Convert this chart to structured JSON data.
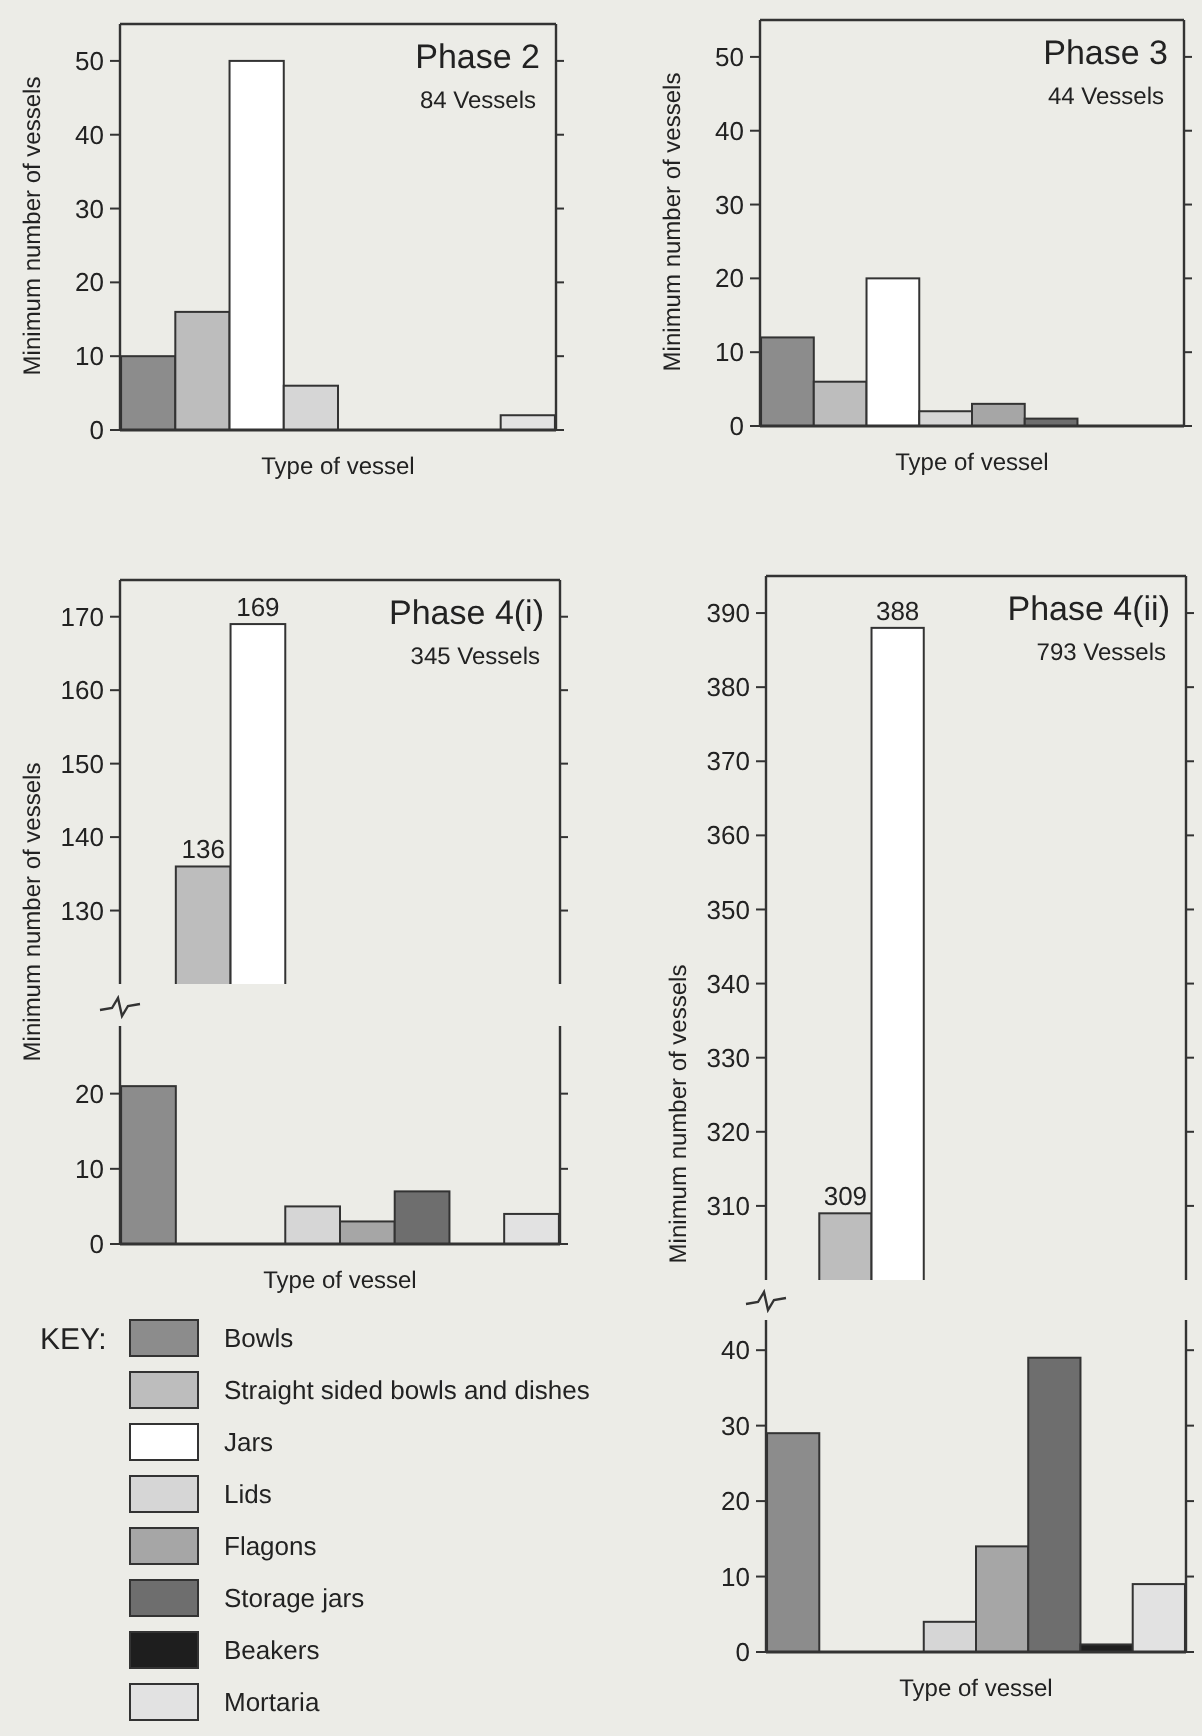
{
  "chart_data": [
    {
      "type": "bar",
      "title": "Phase 2",
      "subtitle": "84 Vessels",
      "xlabel": "Type of vessel",
      "ylabel": "Minimum number of vessels",
      "categories": [
        null,
        null,
        null,
        null,
        null,
        null,
        null,
        null
      ],
      "stacked": true,
      "ylim": [
        0,
        55
      ],
      "yticks": [
        0,
        10,
        20,
        30,
        40,
        50
      ],
      "series": [
        {
          "color": "#8c8c8c",
          "values": [
            10,
            null,
            null,
            null,
            null,
            null,
            null,
            null
          ]
        },
        {
          "color": "#bdbdbd",
          "values": [
            null,
            16,
            null,
            null,
            null,
            null,
            null,
            null
          ]
        },
        {
          "color": "#ffffff",
          "values": [
            null,
            null,
            50,
            null,
            null,
            null,
            null,
            null
          ]
        },
        {
          "color": "#d6d6d6",
          "values": [
            null,
            null,
            null,
            6,
            null,
            null,
            null,
            null
          ]
        },
        {
          "color": "#e2e2e2",
          "values": [
            null,
            null,
            null,
            null,
            null,
            null,
            null,
            2
          ]
        }
      ]
    },
    {
      "type": "bar",
      "title": "Phase 3",
      "subtitle": "44 Vessels",
      "xlabel": "Type of vessel",
      "ylabel": "Minimum number of vessels",
      "categories": [
        null,
        null,
        null,
        null,
        null,
        null,
        null,
        null
      ],
      "stacked": true,
      "ylim": [
        0,
        55
      ],
      "yticks": [
        0,
        10,
        20,
        30,
        40,
        50
      ],
      "series": [
        {
          "color": "#8c8c8c",
          "values": [
            12,
            null,
            null,
            null,
            null,
            null,
            null,
            null
          ]
        },
        {
          "color": "#bdbdbd",
          "values": [
            null,
            6,
            null,
            null,
            null,
            null,
            null,
            null
          ]
        },
        {
          "color": "#ffffff",
          "values": [
            null,
            null,
            20,
            null,
            null,
            null,
            null,
            null
          ]
        },
        {
          "color": "#d6d6d6",
          "values": [
            null,
            null,
            null,
            2,
            null,
            null,
            null,
            null
          ]
        },
        {
          "color": "#a6a6a6",
          "values": [
            null,
            null,
            null,
            null,
            3,
            null,
            null,
            null
          ]
        },
        {
          "color": "#6e6e6e",
          "values": [
            null,
            null,
            null,
            null,
            null,
            1,
            null,
            null
          ]
        }
      ]
    },
    {
      "type": "bar",
      "title": "Phase 4(i)",
      "subtitle": "345 Vessels",
      "categories": [
        null,
        null,
        null,
        null,
        null,
        null,
        null,
        null
      ],
      "stacked": true,
      "ylim": [
        120,
        175
      ],
      "yticks": [
        130,
        140,
        150,
        160,
        170
      ],
      "series": [
        {
          "color": "#bdbdbd",
          "values": [
            null,
            136,
            null,
            null,
            null,
            null,
            null,
            null
          ],
          "value_labels": [
            null,
            "136",
            null,
            null,
            null,
            null,
            null,
            null
          ]
        },
        {
          "color": "#ffffff",
          "values": [
            null,
            null,
            169,
            null,
            null,
            null,
            null,
            null
          ],
          "value_labels": [
            null,
            null,
            "169",
            null,
            null,
            null,
            null,
            null
          ]
        }
      ]
    },
    {
      "type": "bar",
      "xlabel": "Type of vessel",
      "ylabel": "Minimum number of vessels",
      "categories": [
        null,
        null,
        null,
        null,
        null,
        null,
        null,
        null
      ],
      "stacked": true,
      "ylim": [
        0,
        29
      ],
      "yticks": [
        0,
        10,
        20
      ],
      "legend": "bottom",
      "legend_title": "KEY:",
      "series": [
        {
          "name": "Bowls",
          "color": "#8c8c8c",
          "values": [
            21,
            null,
            null,
            null,
            null,
            null,
            null,
            null
          ]
        },
        {
          "name": "Straight sided bowls and dishes",
          "color": "#bdbdbd",
          "values": [
            null,
            null,
            null,
            null,
            null,
            null,
            null,
            null
          ]
        },
        {
          "name": "Jars",
          "color": "#ffffff",
          "values": [
            null,
            null,
            null,
            null,
            null,
            null,
            null,
            null
          ]
        },
        {
          "name": "Lids",
          "color": "#d6d6d6",
          "values": [
            null,
            null,
            null,
            5,
            null,
            null,
            null,
            null
          ]
        },
        {
          "name": "Flagons",
          "color": "#a6a6a6",
          "values": [
            null,
            null,
            null,
            null,
            3,
            null,
            null,
            null
          ]
        },
        {
          "name": "Storage jars",
          "color": "#6e6e6e",
          "values": [
            null,
            null,
            null,
            null,
            null,
            7,
            null,
            null
          ]
        },
        {
          "name": "Beakers",
          "color": "#1e1e1e",
          "values": [
            null,
            null,
            null,
            null,
            null,
            null,
            null,
            null
          ]
        },
        {
          "name": "Mortaria",
          "color": "#e2e2e2",
          "values": [
            null,
            null,
            null,
            null,
            null,
            null,
            null,
            4
          ]
        }
      ]
    },
    {
      "type": "bar",
      "title": "Phase 4(ii)",
      "subtitle": "793 Vessels",
      "categories": [
        null,
        null,
        null,
        null,
        null,
        null,
        null,
        null
      ],
      "stacked": true,
      "ylim": [
        300,
        395
      ],
      "yticks": [
        310,
        320,
        330,
        340,
        350,
        360,
        370,
        380,
        390
      ],
      "series": [
        {
          "color": "#bdbdbd",
          "values": [
            null,
            309,
            null,
            null,
            null,
            null,
            null,
            null
          ],
          "value_labels": [
            null,
            "309",
            null,
            null,
            null,
            null,
            null,
            null
          ]
        },
        {
          "color": "#ffffff",
          "values": [
            null,
            null,
            388,
            null,
            null,
            null,
            null,
            null
          ],
          "value_labels": [
            null,
            null,
            "388",
            null,
            null,
            null,
            null,
            null
          ]
        }
      ]
    },
    {
      "type": "bar",
      "xlabel": "Type of vessel",
      "ylabel": "Minimum number of vessels",
      "categories": [
        null,
        null,
        null,
        null,
        null,
        null,
        null,
        null
      ],
      "stacked": true,
      "ylim": [
        0,
        44
      ],
      "yticks": [
        0,
        10,
        20,
        30,
        40
      ],
      "series": [
        {
          "color": "#8c8c8c",
          "values": [
            29,
            null,
            null,
            null,
            null,
            null,
            null,
            null
          ]
        },
        {
          "color": "#d6d6d6",
          "values": [
            null,
            null,
            null,
            4,
            null,
            null,
            null,
            null
          ]
        },
        {
          "color": "#a6a6a6",
          "values": [
            null,
            null,
            null,
            null,
            14,
            null,
            null,
            null
          ]
        },
        {
          "color": "#6e6e6e",
          "values": [
            null,
            null,
            null,
            null,
            null,
            39,
            null,
            null
          ]
        },
        {
          "color": "#1e1e1e",
          "values": [
            null,
            null,
            null,
            null,
            null,
            null,
            1,
            null
          ]
        },
        {
          "color": "#e2e2e2",
          "values": [
            null,
            null,
            null,
            null,
            null,
            null,
            null,
            9
          ]
        }
      ]
    }
  ]
}
